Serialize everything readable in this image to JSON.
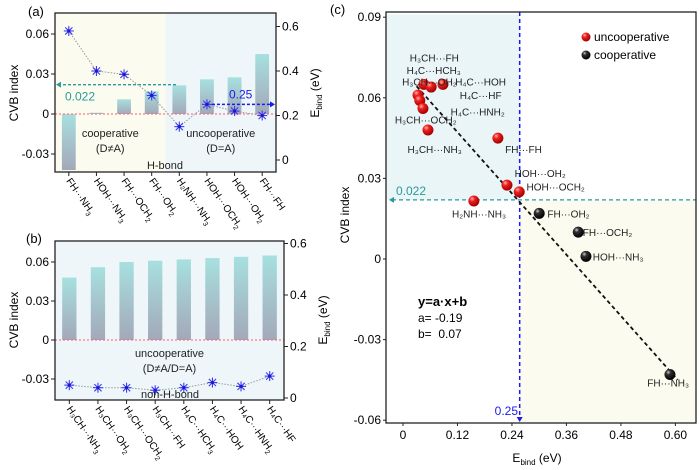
{
  "chart_data": [
    {
      "panel_label": "(a)",
      "type": "bar",
      "title": "",
      "categories": [
        {
          "main": "FH···NH",
          "sub": "3"
        },
        {
          "main": "HOH···NH",
          "sub": "3"
        },
        {
          "main": "FH···OCH",
          "sub": "2"
        },
        {
          "main": "FH···OH",
          "sub": "2"
        },
        {
          "main": "H₂NH···NH",
          "sub": "3"
        },
        {
          "main": "HOH···OCH",
          "sub": "2"
        },
        {
          "main": "HOH···OH",
          "sub": "2"
        },
        {
          "main": "FH···FH",
          "sub": ""
        }
      ],
      "series": [
        {
          "name": "CVB index",
          "type": "bar",
          "axis": "left",
          "values": [
            -0.042,
            0.001,
            0.011,
            0.017,
            0.0215,
            0.026,
            0.0275,
            0.045
          ]
        },
        {
          "name": "E_bind",
          "type": "line",
          "marker": "asterisk",
          "axis": "right",
          "values": [
            0.58,
            0.4,
            0.385,
            0.29,
            0.15,
            0.25,
            0.22,
            0.2
          ]
        }
      ],
      "ylabel": "CVB index",
      "y2label_main": "E",
      "y2label_sub": "bind",
      "y2label_unit": " (eV)",
      "ylim": [
        -0.045,
        0.075
      ],
      "y2lim": [
        -0.07,
        0.67
      ],
      "yticks": [
        -0.03,
        0,
        0.03,
        0.06
      ],
      "ytick_labels": [
        "-0.03",
        "0",
        "0.03",
        "0.06"
      ],
      "y2ticks": [
        0,
        0.2,
        0.4,
        0.6
      ],
      "y2tick_labels": [
        "0",
        "0.2",
        "0.4",
        "0.6"
      ],
      "zero_line": 0,
      "regions": [
        {
          "from_index": 0,
          "to_index": 3,
          "color": "#fbfbef",
          "label": "cooperative",
          "label2": "(D≠A)"
        },
        {
          "from_index": 4,
          "to_index": 7,
          "color": "#eef6fa",
          "label": "uncooperative",
          "label2": "(D=A)"
        }
      ],
      "bottom_label": "H-bond",
      "annotations": [
        {
          "text": "0.022",
          "type": "hline-arrow-left",
          "axis": "left",
          "value": 0.022,
          "color": "#2a9a9a"
        },
        {
          "text": "0.25",
          "type": "hline-arrow-right",
          "axis": "right",
          "value": 0.25,
          "color": "#1a1aee"
        }
      ]
    },
    {
      "panel_label": "(b)",
      "type": "bar",
      "title": "",
      "categories": [
        {
          "main": "H₃CH···NH",
          "sub": "3"
        },
        {
          "main": "H₃CH···OH",
          "sub": "2"
        },
        {
          "main": "H₃CH···OCH",
          "sub": "2"
        },
        {
          "main": "H₃CH···FH",
          "sub": ""
        },
        {
          "main": "H₄C···HCH",
          "sub": "3"
        },
        {
          "main": "H₄C···HOH",
          "sub": ""
        },
        {
          "main": "H₄C···HNH",
          "sub": "2"
        },
        {
          "main": "H₄C···HF",
          "sub": ""
        }
      ],
      "series": [
        {
          "name": "CVB index",
          "type": "bar",
          "axis": "left",
          "values": [
            0.048,
            0.056,
            0.06,
            0.061,
            0.062,
            0.063,
            0.064,
            0.065
          ]
        },
        {
          "name": "E_bind",
          "type": "line",
          "marker": "asterisk",
          "axis": "right",
          "values": [
            0.05,
            0.04,
            0.04,
            0.03,
            0.04,
            0.06,
            0.045,
            0.085
          ]
        }
      ],
      "ylabel": "CVB index",
      "y2label_main": "E",
      "y2label_sub": "bind",
      "y2label_unit": " (eV)",
      "ylim": [
        -0.045,
        0.075
      ],
      "y2lim": [
        -0.03,
        0.63
      ],
      "yticks": [
        -0.03,
        0,
        0.03,
        0.06
      ],
      "ytick_labels": [
        "-0.03",
        "0",
        "0.03",
        "0.06"
      ],
      "y2ticks": [
        0,
        0.2,
        0.4,
        0.6
      ],
      "y2tick_labels": [
        "0",
        "0.2",
        "0.4",
        "0.6"
      ],
      "zero_line": 0,
      "regions": [
        {
          "from_index": 0,
          "to_index": 7,
          "color": "#eef6fa",
          "label": "uncooperative",
          "label2": "(D≠A/D=A)"
        }
      ],
      "bottom_label": "non-H-bond"
    },
    {
      "panel_label": "(c)",
      "type": "scatter",
      "title": "",
      "xlabel_main": "E",
      "xlabel_sub": "bind",
      "xlabel_unit": " (eV)",
      "ylabel": "CVB index",
      "xlim": [
        -0.04,
        0.645
      ],
      "ylim": [
        -0.062,
        0.091
      ],
      "xticks": [
        0,
        0.12,
        0.24,
        0.36,
        0.48,
        0.6
      ],
      "xtick_labels": [
        "0",
        "0.12",
        "0.24",
        "0.36",
        "0.48",
        "0.60"
      ],
      "yticks": [
        -0.06,
        -0.03,
        0,
        0.03,
        0.06,
        0.09
      ],
      "ytick_labels": [
        "-0.06",
        "-0.03",
        "0",
        "0.03",
        "0.06",
        "0.09"
      ],
      "legend": {
        "position": "top-right",
        "entries": [
          {
            "label": "uncooperative",
            "color": "#e8141c"
          },
          {
            "label": "cooperative",
            "color": "#111111"
          }
        ]
      },
      "series": [
        {
          "name": "uncooperative",
          "color": "#e8141c",
          "points": [
            {
              "x": 0.033,
              "y": 0.061
            },
            {
              "x": 0.037,
              "y": 0.059
            },
            {
              "x": 0.046,
              "y": 0.065
            },
            {
              "x": 0.062,
              "y": 0.064
            },
            {
              "x": 0.088,
              "y": 0.065
            },
            {
              "x": 0.044,
              "y": 0.056
            },
            {
              "x": 0.055,
              "y": 0.048
            },
            {
              "x": 0.209,
              "y": 0.045
            },
            {
              "x": 0.229,
              "y": 0.0275
            },
            {
              "x": 0.256,
              "y": 0.025
            },
            {
              "x": 0.156,
              "y": 0.0216
            }
          ]
        },
        {
          "name": "cooperative",
          "color": "#111111",
          "points": [
            {
              "x": 0.3,
              "y": 0.017
            },
            {
              "x": 0.386,
              "y": 0.01
            },
            {
              "x": 0.403,
              "y": 0.001
            },
            {
              "x": 0.588,
              "y": -0.043
            }
          ]
        }
      ],
      "point_labels": [
        {
          "main": "H₃CH···FH",
          "x": 0.015,
          "y": 0.0735
        },
        {
          "main": "H₄C···HCH₃",
          "x": 0.008,
          "y": 0.0688
        },
        {
          "main": "H₃CH···OH₂",
          "x": -0.002,
          "y": 0.0645
        },
        {
          "main": "H₄C···HOH",
          "x": 0.115,
          "y": 0.0645
        },
        {
          "main": "H₄C···HF",
          "x": 0.125,
          "y": 0.0595
        },
        {
          "main": "H₄C···HNH₂",
          "x": 0.105,
          "y": 0.0535
        },
        {
          "main": "H₃CH···OCH₂",
          "x": -0.018,
          "y": 0.0505
        },
        {
          "main": "H₃CH···NH₃",
          "x": 0.01,
          "y": 0.0395
        },
        {
          "main": "FH···FH",
          "x": 0.225,
          "y": 0.0395
        },
        {
          "main": "HOH···OH₂",
          "x": 0.246,
          "y": 0.0305
        },
        {
          "main": "HOH···OCH₂",
          "x": 0.272,
          "y": 0.0255
        },
        {
          "main": "H₂NH···NH₃",
          "x": 0.108,
          "y": 0.0155
        },
        {
          "main": "FH···OH₂",
          "x": 0.318,
          "y": 0.0155
        },
        {
          "main": "FH···OCH₂",
          "x": 0.396,
          "y": 0.0085
        },
        {
          "main": "HOH···NH₃",
          "x": 0.418,
          "y": -0.0005
        },
        {
          "main": "FH···NH₃",
          "x": 0.538,
          "y": -0.0475
        }
      ],
      "fit": {
        "equation": "y=a·x+b",
        "a_label": "a= -0.19",
        "b_label": "b=  0.07",
        "a": -0.19,
        "b": 0.07,
        "x_range": [
          0.03,
          0.605
        ]
      },
      "annotations": [
        {
          "text": "0.022",
          "type": "hline-arrow-left",
          "value": 0.022,
          "color": "#2a9a9a"
        },
        {
          "text": "0.25",
          "type": "vline-arrow-down",
          "value": 0.257,
          "color": "#1a1aee"
        }
      ],
      "regions": [
        {
          "name": "uncooperative-region",
          "x": [
            -0.04,
            0.257
          ],
          "y": [
            0.022,
            0.091
          ],
          "color": "#eaf5f8"
        },
        {
          "name": "cooperative-region",
          "x": [
            0.257,
            0.645
          ],
          "y": [
            -0.062,
            0.022
          ],
          "color": "#fbfbef"
        }
      ]
    }
  ]
}
